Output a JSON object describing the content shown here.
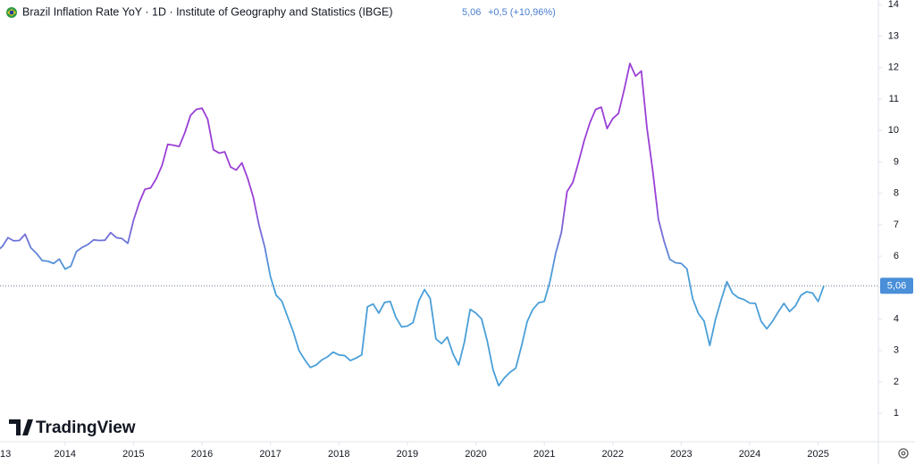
{
  "chart_data": {
    "type": "line",
    "title": "Brazil Inflation Rate YoY · 1D · Institute of Geography and Statistics (IBGE)",
    "header_value": "5,06",
    "header_change": "+0,5 (+10,96%)",
    "last_label": {
      "value": 5.06,
      "label": "5,06"
    },
    "brand": "TradingView",
    "xlim": [
      2013.05,
      2025.84
    ],
    "xticks": [
      {
        "value": 2013,
        "label": "13"
      },
      2014,
      2015,
      2016,
      2017,
      2018,
      2019,
      2020,
      2021,
      2022,
      2023,
      2024,
      2025
    ],
    "ylim": [
      0.1,
      14.15
    ],
    "yticks": [
      1,
      2,
      3,
      4,
      5,
      6,
      7,
      8,
      9,
      10,
      11,
      12,
      13,
      14
    ],
    "series": [
      {
        "name": "Brazil Inflation Rate YoY",
        "color": "#4a9fd8",
        "high_color": "#9b3fd6",
        "x": [
          2013.0,
          2013.083,
          2013.167,
          2013.25,
          2013.333,
          2013.417,
          2013.5,
          2013.583,
          2013.667,
          2013.75,
          2013.833,
          2013.917,
          2014.0,
          2014.083,
          2014.167,
          2014.25,
          2014.333,
          2014.417,
          2014.5,
          2014.583,
          2014.667,
          2014.75,
          2014.833,
          2014.917,
          2015.0,
          2015.083,
          2015.167,
          2015.25,
          2015.333,
          2015.417,
          2015.5,
          2015.583,
          2015.667,
          2015.75,
          2015.833,
          2015.917,
          2016.0,
          2016.083,
          2016.167,
          2016.25,
          2016.333,
          2016.417,
          2016.5,
          2016.583,
          2016.667,
          2016.75,
          2016.833,
          2016.917,
          2017.0,
          2017.083,
          2017.167,
          2017.25,
          2017.333,
          2017.417,
          2017.5,
          2017.583,
          2017.667,
          2017.75,
          2017.833,
          2017.917,
          2018.0,
          2018.083,
          2018.167,
          2018.25,
          2018.333,
          2018.417,
          2018.5,
          2018.583,
          2018.667,
          2018.75,
          2018.833,
          2018.917,
          2019.0,
          2019.083,
          2019.167,
          2019.25,
          2019.333,
          2019.417,
          2019.5,
          2019.583,
          2019.667,
          2019.75,
          2019.833,
          2019.917,
          2020.0,
          2020.083,
          2020.167,
          2020.25,
          2020.333,
          2020.417,
          2020.5,
          2020.583,
          2020.667,
          2020.75,
          2020.833,
          2020.917,
          2021.0,
          2021.083,
          2021.167,
          2021.25,
          2021.333,
          2021.417,
          2021.5,
          2021.583,
          2021.667,
          2021.75,
          2021.833,
          2021.917,
          2022.0,
          2022.083,
          2022.167,
          2022.25,
          2022.333,
          2022.417,
          2022.5,
          2022.583,
          2022.667,
          2022.75,
          2022.833,
          2022.917,
          2023.0,
          2023.083,
          2023.167,
          2023.25,
          2023.333,
          2023.417,
          2023.5,
          2023.583,
          2023.667,
          2023.75,
          2023.833,
          2023.917,
          2024.0,
          2024.083,
          2024.167,
          2024.25,
          2024.333,
          2024.417,
          2024.5,
          2024.583,
          2024.667,
          2024.75,
          2024.833,
          2024.917,
          2025.0,
          2025.083
        ],
        "values": [
          6.15,
          6.31,
          6.59,
          6.49,
          6.5,
          6.7,
          6.27,
          6.09,
          5.86,
          5.84,
          5.77,
          5.91,
          5.59,
          5.68,
          6.15,
          6.28,
          6.37,
          6.52,
          6.5,
          6.51,
          6.75,
          6.59,
          6.56,
          6.41,
          7.14,
          7.7,
          8.13,
          8.17,
          8.47,
          8.89,
          9.56,
          9.53,
          9.49,
          9.93,
          10.48,
          10.67,
          10.71,
          10.36,
          9.39,
          9.28,
          9.32,
          8.84,
          8.74,
          8.97,
          8.48,
          7.87,
          6.99,
          6.29,
          5.35,
          4.76,
          4.57,
          4.08,
          3.6,
          3.0,
          2.71,
          2.46,
          2.54,
          2.7,
          2.8,
          2.95,
          2.86,
          2.84,
          2.68,
          2.76,
          2.86,
          4.39,
          4.48,
          4.19,
          4.53,
          4.56,
          4.05,
          3.75,
          3.78,
          3.89,
          4.58,
          4.94,
          4.66,
          3.37,
          3.22,
          3.43,
          2.89,
          2.54,
          3.27,
          4.31,
          4.19,
          4.01,
          3.3,
          2.4,
          1.88,
          2.13,
          2.31,
          2.44,
          3.14,
          3.92,
          4.31,
          4.52,
          4.56,
          5.2,
          6.1,
          6.76,
          8.06,
          8.35,
          8.99,
          9.68,
          10.25,
          10.67,
          10.74,
          10.06,
          10.38,
          10.54,
          11.3,
          12.13,
          11.73,
          11.89,
          10.07,
          8.73,
          7.17,
          6.47,
          5.9,
          5.79,
          5.77,
          5.6,
          4.65,
          4.18,
          3.94,
          3.16,
          3.99,
          4.61,
          5.19,
          4.82,
          4.68,
          4.62,
          4.51,
          4.5,
          3.93,
          3.69,
          3.93,
          4.23,
          4.5,
          4.24,
          4.42,
          4.76,
          4.87,
          4.83,
          4.56,
          5.06
        ]
      }
    ]
  }
}
